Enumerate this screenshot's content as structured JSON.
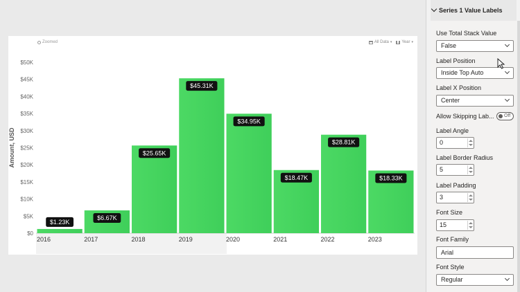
{
  "chart_toolbar": {
    "zoom_reset": "Zoomed",
    "date_filter": "All Data",
    "period": "Year"
  },
  "chart_data": {
    "type": "bar",
    "categories": [
      "2016",
      "2017",
      "2018",
      "2019",
      "2020",
      "2021",
      "2022",
      "2023"
    ],
    "values": [
      1.23,
      6.67,
      25.65,
      45.31,
      34.95,
      18.47,
      28.81,
      18.33
    ],
    "data_labels": [
      "$1.23K",
      "$6.67K",
      "$25.65K",
      "$45.31K",
      "$34.95K",
      "$18.47K",
      "$28.81K",
      "$18.33K"
    ],
    "y_ticks": [
      "$0",
      "$5K",
      "$10K",
      "$15K",
      "$20K",
      "$25K",
      "$30K",
      "$35K",
      "$40K",
      "$45K",
      "$50K"
    ],
    "ylabel": "Amount, USD",
    "xlabel": "",
    "ylim": [
      0,
      50
    ],
    "bar_color": "#4cd964",
    "label_bg": "#111111",
    "grid": false
  },
  "pane": {
    "section_title": "Series 1 Value Labels",
    "fields": {
      "use_total_stack_value": {
        "label": "Use Total Stack Value",
        "value": "False"
      },
      "label_position": {
        "label": "Label Position",
        "value": "Inside Top Auto"
      },
      "label_x_position": {
        "label": "Label X Position",
        "value": "Center"
      },
      "allow_skipping": {
        "label": "Allow Skipping Lab...",
        "toggle_text": "Off"
      },
      "label_angle": {
        "label": "Label Angle",
        "value": "0"
      },
      "label_border_radius": {
        "label": "Label Border Radius",
        "value": "5"
      },
      "label_padding": {
        "label": "Label Padding",
        "value": "3"
      },
      "font_size": {
        "label": "Font Size",
        "value": "15"
      },
      "font_family": {
        "label": "Font Family",
        "value": "Arial"
      },
      "font_style": {
        "label": "Font Style",
        "value": "Regular"
      }
    }
  }
}
